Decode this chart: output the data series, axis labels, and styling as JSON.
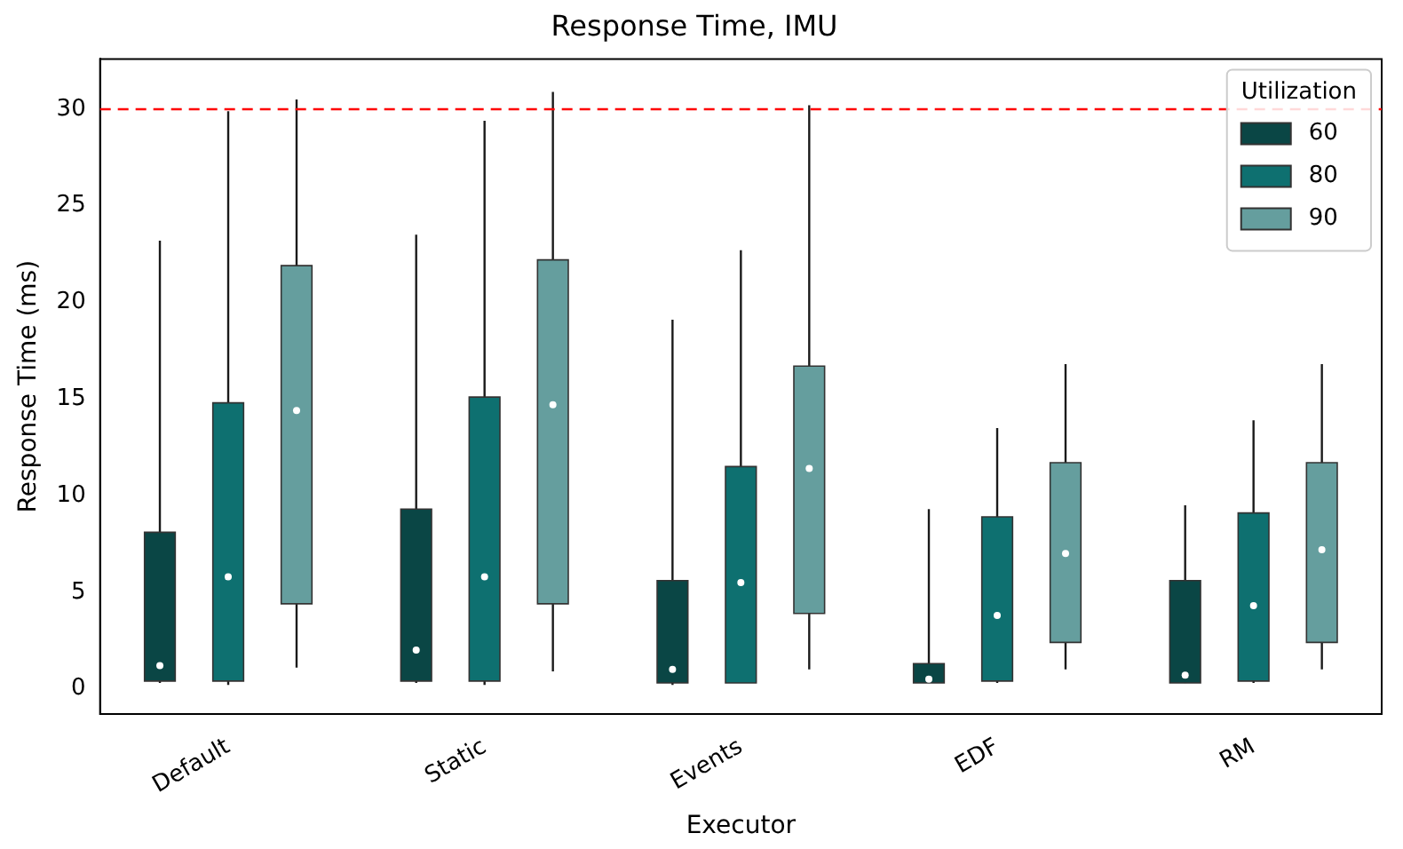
{
  "chart_data": {
    "type": "box",
    "title": "Response Time, IMU",
    "xlabel": "Executor",
    "ylabel": "Response Time (ms)",
    "legend_title": "Utilization",
    "legend": "top right",
    "grid": false,
    "categories": [
      "Default",
      "Static",
      "Events",
      "EDF",
      "RM"
    ],
    "ylim": [
      -1.3,
      32.6
    ],
    "yticks": [
      0,
      5,
      10,
      15,
      20,
      25,
      30
    ],
    "ref_lines": [
      {
        "axis": "y",
        "value": 30,
        "color": "#ff0000",
        "line_style": "dashed"
      }
    ],
    "series": [
      {
        "name": "60",
        "color": "#0a4645",
        "boxes": [
          {
            "low": 0.3,
            "q1": 0.4,
            "median": 1.2,
            "q3": 8.1,
            "high": 23.2
          },
          {
            "low": 0.3,
            "q1": 0.4,
            "median": 2.0,
            "q3": 9.3,
            "high": 23.5
          },
          {
            "low": 0.2,
            "q1": 0.3,
            "median": 1.0,
            "q3": 5.6,
            "high": 19.1
          },
          {
            "low": 0.3,
            "q1": 0.3,
            "median": 0.5,
            "q3": 1.3,
            "high": 9.3
          },
          {
            "low": 0.3,
            "q1": 0.3,
            "median": 0.7,
            "q3": 5.6,
            "high": 9.5
          }
        ]
      },
      {
        "name": "80",
        "color": "#0e7070",
        "boxes": [
          {
            "low": 0.2,
            "q1": 0.4,
            "median": 5.8,
            "q3": 14.8,
            "high": 29.9
          },
          {
            "low": 0.2,
            "q1": 0.4,
            "median": 5.8,
            "q3": 15.1,
            "high": 29.4
          },
          {
            "low": 0.3,
            "q1": 0.3,
            "median": 5.5,
            "q3": 11.5,
            "high": 22.7
          },
          {
            "low": 0.3,
            "q1": 0.4,
            "median": 3.8,
            "q3": 8.9,
            "high": 13.5
          },
          {
            "low": 0.3,
            "q1": 0.4,
            "median": 4.3,
            "q3": 9.1,
            "high": 13.9
          }
        ]
      },
      {
        "name": "90",
        "color": "#659e9e",
        "boxes": [
          {
            "low": 1.1,
            "q1": 4.4,
            "median": 14.4,
            "q3": 21.9,
            "high": 30.5
          },
          {
            "low": 0.9,
            "q1": 4.4,
            "median": 14.7,
            "q3": 22.2,
            "high": 30.9
          },
          {
            "low": 1.0,
            "q1": 3.9,
            "median": 11.4,
            "q3": 16.7,
            "high": 30.2
          },
          {
            "low": 1.0,
            "q1": 2.4,
            "median": 7.0,
            "q3": 11.7,
            "high": 16.8
          },
          {
            "low": 1.0,
            "q1": 2.4,
            "median": 7.2,
            "q3": 11.7,
            "high": 16.8
          }
        ]
      }
    ]
  }
}
